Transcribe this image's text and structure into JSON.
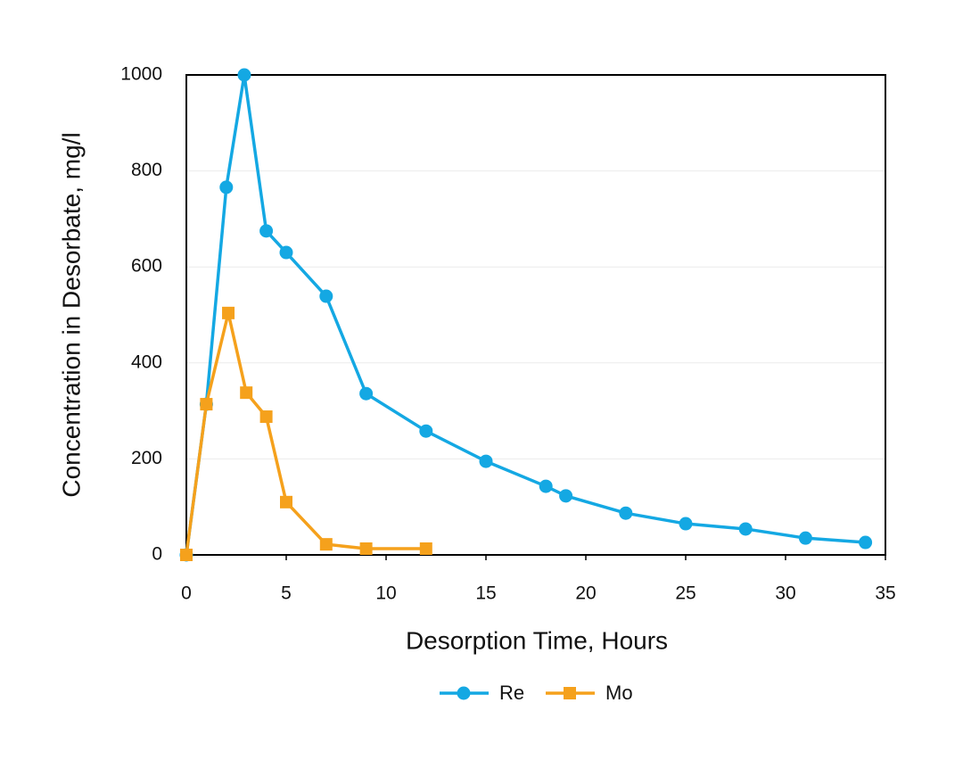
{
  "chart_data": {
    "type": "line",
    "x_label": "Desorption Time, Hours",
    "y_label": "Concentration in Desorbate, mg/l",
    "xlim": [
      0,
      35
    ],
    "xticks": [
      0,
      5,
      10,
      15,
      20,
      25,
      30,
      35
    ],
    "ylim": [
      0,
      1000
    ],
    "yticks": [
      0,
      200,
      400,
      600,
      800,
      1000
    ],
    "grid": true,
    "legend": "bottom",
    "series": [
      {
        "name": "Re",
        "color": "#14a8e3",
        "marker": "circle",
        "x": [
          0,
          1,
          2,
          2.9,
          4,
          5,
          7,
          9,
          12,
          15,
          18,
          19,
          22,
          25,
          28,
          31,
          34
        ],
        "values": [
          0,
          314,
          766,
          1000,
          675,
          630,
          539,
          336,
          258,
          195,
          143,
          123,
          87,
          65,
          54,
          35,
          26
        ]
      },
      {
        "name": "Mo",
        "color": "#f5a11c",
        "marker": "square",
        "x": [
          0,
          1,
          2.1,
          3,
          4,
          5,
          7,
          9,
          12
        ],
        "values": [
          0,
          314,
          504,
          338,
          288,
          110,
          22,
          13,
          13
        ]
      }
    ]
  }
}
